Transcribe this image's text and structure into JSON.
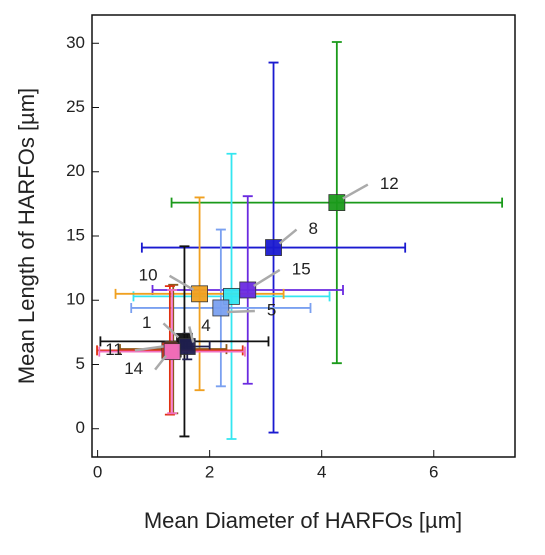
{
  "chart_data": {
    "type": "scatter",
    "xlabel": "Mean Diameter of HARFOs [µm]",
    "ylabel": "Mean Length of HARFOs [µm]",
    "xlim": [
      -0.1,
      7.45
    ],
    "ylim": [
      -2.2,
      32.2
    ],
    "xticks": [
      0,
      2,
      4,
      6
    ],
    "yticks": [
      0,
      5,
      10,
      15,
      20,
      25,
      30
    ],
    "points": [
      {
        "label": "12",
        "x": 4.27,
        "y": 17.6,
        "xerr": 2.95,
        "yerr": 12.5,
        "color": "#1a9a1a"
      },
      {
        "label": "8",
        "x": 3.14,
        "y": 14.1,
        "xerr": 2.35,
        "yerr": 14.4,
        "color": "#1a1ad0"
      },
      {
        "label": "15",
        "x": 2.68,
        "y": 10.8,
        "xerr": 1.7,
        "yerr": 7.3,
        "color": "#6a2ae0"
      },
      {
        "x": 2.39,
        "y": 10.3,
        "xerr": 1.75,
        "yerr": 11.1,
        "color": "#33e6f0"
      },
      {
        "label": "5",
        "x": 2.2,
        "y": 9.4,
        "xerr": 1.6,
        "yerr": 6.1,
        "color": "#7aa0f0"
      },
      {
        "label": "10",
        "x": 1.82,
        "y": 10.5,
        "xerr": 1.5,
        "yerr": 7.5,
        "color": "#f0a020"
      },
      {
        "x": 1.35,
        "y": 6.2,
        "xerr": 0.95,
        "yerr": 5.0,
        "color": "#8a5a1a"
      },
      {
        "label": "1",
        "x": 1.55,
        "y": 6.8,
        "xerr": 1.5,
        "yerr": 7.4,
        "color": "#111111"
      },
      {
        "label": "4",
        "x": 1.6,
        "y": 6.4,
        "xerr": 0.4,
        "yerr": 1.0,
        "color": "#202050"
      },
      {
        "label": "11",
        "x": 1.29,
        "y": 6.1,
        "xerr": 1.3,
        "yerr": 5.0,
        "color": "#e03010"
      },
      {
        "label": "14",
        "x": 1.33,
        "y": 6.0,
        "xerr": 1.3,
        "yerr": 4.8,
        "color": "#f070c0"
      }
    ]
  }
}
